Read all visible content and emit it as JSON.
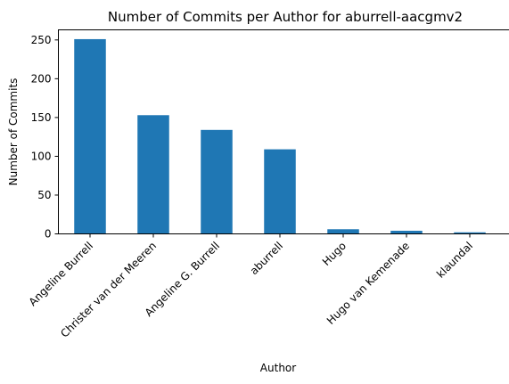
{
  "chart_data": {
    "type": "bar",
    "title": "Number of Commits per Author for aburrell-aacgmv2",
    "xlabel": "Author",
    "ylabel": "Number of Commits",
    "categories": [
      "Angeline Burrell",
      "Christer van der Meeren",
      "Angeline G. Burrell",
      "aburrell",
      "Hugo",
      "Hugo van Kemenade",
      "klaundal"
    ],
    "values": [
      251,
      153,
      134,
      109,
      6,
      4,
      2
    ],
    "ylim": [
      0,
      263
    ],
    "yticks": [
      0,
      50,
      100,
      150,
      200,
      250
    ],
    "grid": false,
    "bar_color": "#1f77b4"
  }
}
